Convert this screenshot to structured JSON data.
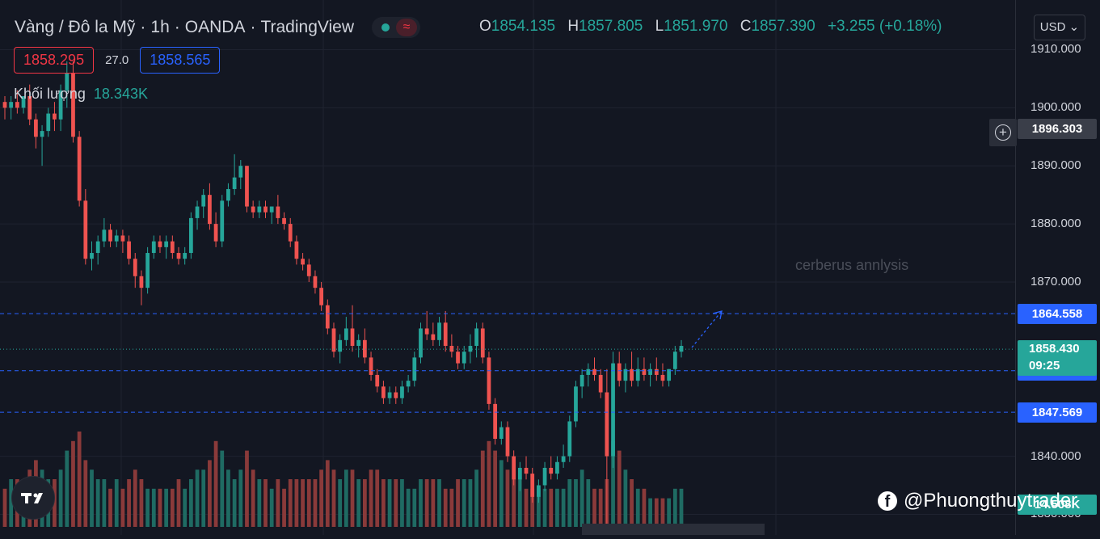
{
  "header": {
    "symbol": "Vàng / Đô la Mỹ",
    "interval": "1h",
    "broker": "OANDA",
    "platform": "TradingView",
    "status_icon": "market-open-dot",
    "wave_icon": "≈",
    "ohlc": {
      "o_label": "O",
      "o": "1854.135",
      "h_label": "H",
      "h": "1857.805",
      "l_label": "L",
      "l": "1851.970",
      "c_label": "C",
      "c": "1857.390",
      "change": "+3.255 (+0.18%)"
    },
    "bid": "1858.295",
    "spread": "27.0",
    "ask": "1858.565",
    "volume_label": "Khối lượng",
    "volume_value": "18.343K",
    "currency": "USD"
  },
  "watermark": "cerberus annlysis",
  "credit": "@Phuongthuytrader",
  "colors": {
    "up": "#26a69a",
    "down": "#ef5350",
    "background": "#131722",
    "grid": "#1f2330",
    "level": "#2962ff"
  },
  "chart_data": {
    "type": "candlestick",
    "ylim": [
      1827,
      1918
    ],
    "yticks": [
      "1910.000",
      "1900.000",
      "1890.000",
      "1880.000",
      "1870.000",
      "1840.000",
      "1830.000"
    ],
    "levels": [
      {
        "value": 1864.558,
        "label": "1864.558"
      },
      {
        "value": 1854.722,
        "label": "1854.722"
      },
      {
        "value": 1847.569,
        "label": "1847.569"
      }
    ],
    "alert_price": "1896.303",
    "last_price": {
      "value": 1858.43,
      "label": "1858.430",
      "countdown": "09:25"
    },
    "volume_tag": "14.508K",
    "candles": [
      [
        1901,
        1902,
        1898,
        1900
      ],
      [
        1900,
        1902,
        1898,
        1901
      ],
      [
        1901,
        1903,
        1899,
        1900
      ],
      [
        1900,
        1902,
        1899,
        1902
      ],
      [
        1902,
        1904,
        1897,
        1898
      ],
      [
        1898,
        1899,
        1893,
        1895
      ],
      [
        1895,
        1897,
        1890,
        1896
      ],
      [
        1896,
        1900,
        1895,
        1899
      ],
      [
        1899,
        1901,
        1896,
        1898
      ],
      [
        1898,
        1904,
        1896,
        1903
      ],
      [
        1903,
        1908,
        1900,
        1906
      ],
      [
        1906,
        1908,
        1894,
        1895
      ],
      [
        1895,
        1896,
        1883,
        1884
      ],
      [
        1884,
        1886,
        1873,
        1874
      ],
      [
        1874,
        1877,
        1872,
        1875
      ],
      [
        1875,
        1878,
        1873,
        1877
      ],
      [
        1877,
        1881,
        1876,
        1879
      ],
      [
        1879,
        1880,
        1876,
        1877
      ],
      [
        1877,
        1879,
        1876,
        1878
      ],
      [
        1878,
        1879,
        1875,
        1877
      ],
      [
        1877,
        1878,
        1873,
        1874
      ],
      [
        1874,
        1875,
        1869,
        1871
      ],
      [
        1871,
        1872,
        1866,
        1869
      ],
      [
        1869,
        1876,
        1868,
        1875
      ],
      [
        1875,
        1878,
        1874,
        1877
      ],
      [
        1877,
        1878,
        1875,
        1876
      ],
      [
        1876,
        1878,
        1874,
        1877
      ],
      [
        1877,
        1878,
        1874,
        1875
      ],
      [
        1875,
        1876,
        1873,
        1874
      ],
      [
        1874,
        1876,
        1873,
        1875
      ],
      [
        1875,
        1882,
        1874,
        1881
      ],
      [
        1881,
        1884,
        1879,
        1883
      ],
      [
        1883,
        1886,
        1881,
        1885
      ],
      [
        1885,
        1887,
        1879,
        1880
      ],
      [
        1880,
        1882,
        1876,
        1877
      ],
      [
        1877,
        1885,
        1876,
        1884
      ],
      [
        1884,
        1887,
        1883,
        1886
      ],
      [
        1886,
        1892,
        1885,
        1888
      ],
      [
        1888,
        1891,
        1886,
        1890
      ],
      [
        1890,
        1890,
        1882,
        1883
      ],
      [
        1883,
        1884,
        1881,
        1882
      ],
      [
        1882,
        1884,
        1881,
        1883
      ],
      [
        1883,
        1884,
        1881,
        1882
      ],
      [
        1882,
        1883,
        1880,
        1883
      ],
      [
        1883,
        1885,
        1880,
        1881
      ],
      [
        1881,
        1882,
        1879,
        1880
      ],
      [
        1880,
        1881,
        1876,
        1877
      ],
      [
        1877,
        1878,
        1873,
        1874
      ],
      [
        1874,
        1875,
        1872,
        1873
      ],
      [
        1873,
        1874,
        1870,
        1871
      ],
      [
        1871,
        1872,
        1868,
        1869
      ],
      [
        1869,
        1870,
        1865,
        1866
      ],
      [
        1866,
        1867,
        1861,
        1862
      ],
      [
        1862,
        1863,
        1857,
        1858
      ],
      [
        1858,
        1861,
        1856,
        1860
      ],
      [
        1860,
        1864,
        1859,
        1862
      ],
      [
        1862,
        1866,
        1858,
        1859
      ],
      [
        1859,
        1861,
        1857,
        1860
      ],
      [
        1860,
        1862,
        1856,
        1857
      ],
      [
        1857,
        1858,
        1853,
        1854
      ],
      [
        1854,
        1855,
        1851,
        1852
      ],
      [
        1852,
        1853,
        1849,
        1850
      ],
      [
        1850,
        1852,
        1849,
        1851
      ],
      [
        1851,
        1852,
        1849,
        1850
      ],
      [
        1850,
        1853,
        1849,
        1852
      ],
      [
        1852,
        1854,
        1851,
        1853
      ],
      [
        1853,
        1858,
        1852,
        1857
      ],
      [
        1857,
        1863,
        1856,
        1862
      ],
      [
        1862,
        1865,
        1860,
        1861
      ],
      [
        1861,
        1863,
        1859,
        1860
      ],
      [
        1860,
        1864,
        1859,
        1863
      ],
      [
        1863,
        1865,
        1858,
        1859
      ],
      [
        1859,
        1861,
        1857,
        1858
      ],
      [
        1858,
        1859,
        1855,
        1856
      ],
      [
        1856,
        1859,
        1855,
        1858
      ],
      [
        1858,
        1861,
        1856,
        1859
      ],
      [
        1859,
        1863,
        1857,
        1862
      ],
      [
        1862,
        1863,
        1856,
        1857
      ],
      [
        1857,
        1858,
        1848,
        1849
      ],
      [
        1849,
        1850,
        1842,
        1843
      ],
      [
        1843,
        1846,
        1842,
        1845
      ],
      [
        1845,
        1846,
        1839,
        1840
      ],
      [
        1840,
        1841,
        1835,
        1836
      ],
      [
        1836,
        1839,
        1834,
        1838
      ],
      [
        1838,
        1840,
        1836,
        1837
      ],
      [
        1837,
        1838,
        1832,
        1833
      ],
      [
        1833,
        1836,
        1832,
        1835
      ],
      [
        1835,
        1839,
        1834,
        1838
      ],
      [
        1838,
        1840,
        1836,
        1837
      ],
      [
        1837,
        1840,
        1836,
        1839
      ],
      [
        1839,
        1842,
        1838,
        1840
      ],
      [
        1840,
        1847,
        1839,
        1846
      ],
      [
        1846,
        1853,
        1845,
        1852
      ],
      [
        1852,
        1855,
        1850,
        1854
      ],
      [
        1854,
        1856,
        1852,
        1855
      ],
      [
        1855,
        1857,
        1853,
        1854
      ],
      [
        1854,
        1855,
        1850,
        1851
      ],
      [
        1851,
        1855,
        1828,
        1840
      ],
      [
        1840,
        1858,
        1838,
        1856
      ],
      [
        1856,
        1858,
        1852,
        1853
      ],
      [
        1853,
        1856,
        1851,
        1855
      ],
      [
        1855,
        1858,
        1852,
        1853
      ],
      [
        1853,
        1857,
        1852,
        1855
      ],
      [
        1855,
        1857,
        1853,
        1854
      ],
      [
        1854,
        1856,
        1852,
        1855
      ],
      [
        1855,
        1857,
        1853,
        1854
      ],
      [
        1854,
        1856,
        1852,
        1853
      ],
      [
        1853,
        1855,
        1852,
        1855
      ],
      [
        1855,
        1859,
        1854,
        1858
      ],
      [
        1858,
        1860,
        1857,
        1859
      ]
    ],
    "volume": [
      4,
      5,
      5,
      4,
      6,
      7,
      6,
      5,
      5,
      6,
      8,
      9,
      10,
      7,
      6,
      5,
      5,
      4,
      5,
      4,
      5,
      6,
      5,
      4,
      4,
      4,
      4,
      4,
      5,
      4,
      5,
      6,
      6,
      7,
      9,
      8,
      6,
      5,
      6,
      8,
      6,
      5,
      5,
      4,
      5,
      4,
      5,
      5,
      5,
      5,
      5,
      6,
      7,
      6,
      5,
      6,
      6,
      5,
      5,
      6,
      6,
      5,
      5,
      5,
      5,
      4,
      4,
      5,
      5,
      5,
      5,
      4,
      4,
      5,
      5,
      5,
      6,
      8,
      9,
      8,
      7,
      6,
      5,
      5,
      4,
      4,
      4,
      4,
      4,
      4,
      4,
      5,
      5,
      6,
      5,
      4,
      4,
      5,
      9,
      8,
      6,
      5,
      4,
      4,
      3,
      3,
      3,
      3,
      4,
      4
    ]
  }
}
